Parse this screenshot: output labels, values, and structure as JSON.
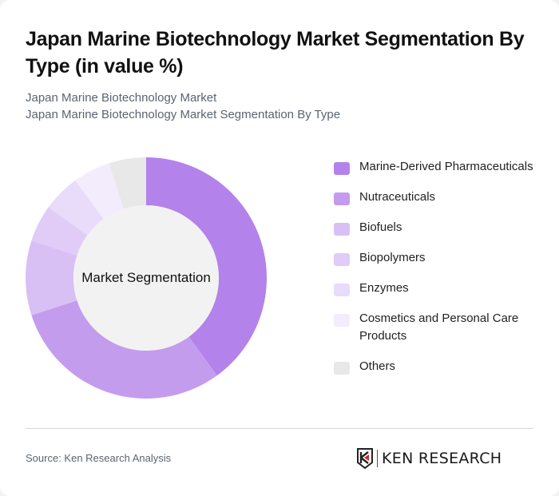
{
  "header": {
    "title": "Japan Marine Biotechnology Market Segmentation By Type (in value %)",
    "subtitle_line1": "Japan Marine Biotechnology Market",
    "subtitle_line2": "Japan Marine Biotechnology Market Segmentation By Type"
  },
  "chart": {
    "center_label": "Market Segmentation"
  },
  "legend": {
    "items": [
      {
        "label": "Marine-Derived Pharmaceuticals",
        "color": "#b382ea"
      },
      {
        "label": "Nutraceuticals",
        "color": "#c49cee"
      },
      {
        "label": "Biofuels",
        "color": "#d8c0f5"
      },
      {
        "label": "Biopolymers",
        "color": "#e0ccf7"
      },
      {
        "label": "Enzymes",
        "color": "#e9dbfa"
      },
      {
        "label": "Cosmetics and Personal Care Products",
        "color": "#f3ecfc"
      },
      {
        "label": "Others",
        "color": "#e8e8e8"
      }
    ]
  },
  "footer": {
    "source": "Source: Ken Research Analysis",
    "logo_text": "KEN RESEARCH"
  },
  "chart_data": {
    "type": "pie",
    "variant": "donut",
    "title": "Japan Marine Biotechnology Market Segmentation By Type (in value %)",
    "center_label": "Market Segmentation",
    "categories": [
      "Marine-Derived Pharmaceuticals",
      "Nutraceuticals",
      "Biofuels",
      "Biopolymers",
      "Enzymes",
      "Cosmetics and Personal Care Products",
      "Others"
    ],
    "values": [
      40,
      30,
      10,
      5,
      5,
      5,
      5
    ],
    "colors": [
      "#b382ea",
      "#c49cee",
      "#d8c0f5",
      "#e0ccf7",
      "#e9dbfa",
      "#f3ecfc",
      "#e8e8e8"
    ],
    "unit": "%",
    "legend_position": "right"
  }
}
